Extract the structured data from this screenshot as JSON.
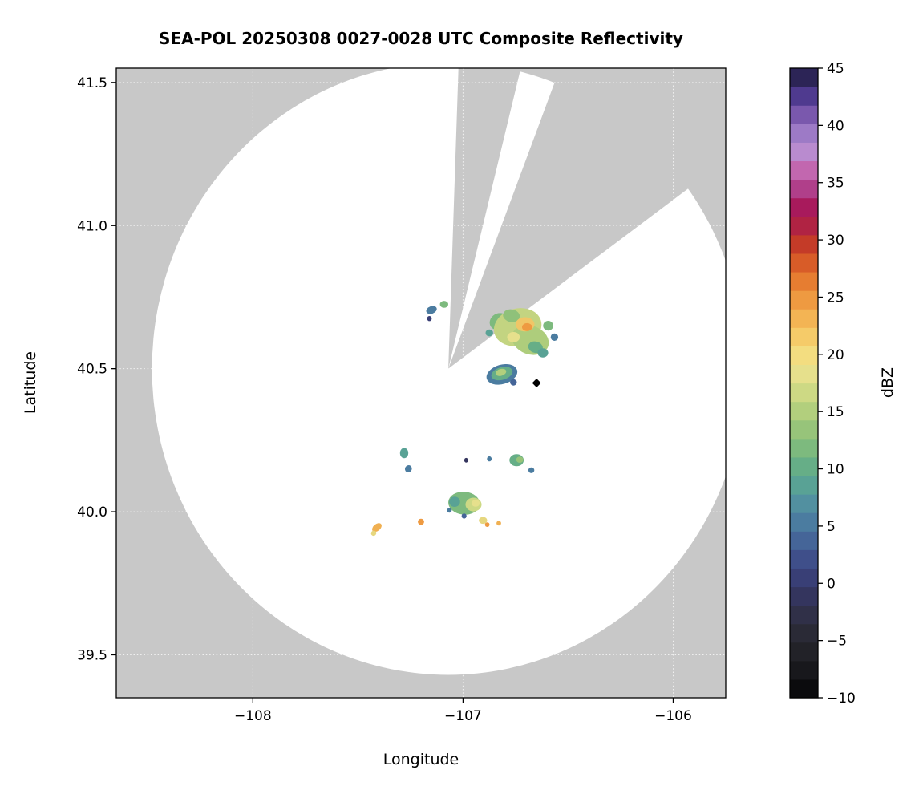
{
  "title": "SEA-POL 20250308 0027-0028 UTC Composite Reflectivity",
  "chart_data": {
    "type": "heatmap",
    "title": "SEA-POL 20250308 0027-0028 UTC Composite Reflectivity",
    "xlabel": "Longitude",
    "ylabel": "Latitude",
    "xlim": [
      -108.65,
      -105.75
    ],
    "ylim": [
      39.35,
      41.55
    ],
    "xticks": [
      -108,
      -107,
      -106
    ],
    "xtick_labels": [
      "−108",
      "−107",
      "−106"
    ],
    "yticks": [
      39.5,
      40.0,
      40.5,
      41.0,
      41.5
    ],
    "ytick_labels": [
      "39.5",
      "40.0",
      "40.5",
      "41.0",
      "41.5"
    ],
    "grid": true,
    "outside_color": "#c8c8c8",
    "radar": {
      "center_lon": -107.07,
      "center_lat": 40.5,
      "radius_lon_deg": 1.41,
      "radius_lat_deg": 1.07,
      "blocked_sectors_az_deg": [
        [
          2,
          14
        ],
        [
          21,
          54
        ]
      ]
    },
    "site_marker": {
      "lon": -106.65,
      "lat": 40.45,
      "shape": "diamond",
      "color": "#000000"
    },
    "colorbar": {
      "label": "dBZ",
      "min": -10,
      "max": 45,
      "tick_values": [
        -10,
        -5,
        0,
        5,
        10,
        15,
        20,
        25,
        30,
        35,
        40,
        45
      ],
      "tick_labels": [
        "−10",
        "−5",
        "0",
        "5",
        "10",
        "15",
        "20",
        "25",
        "30",
        "35",
        "40",
        "45"
      ],
      "colors_bottom_to_top": [
        "#0b0b0d",
        "#18181c",
        "#222228",
        "#2a2a36",
        "#303048",
        "#34355e",
        "#393f76",
        "#3f4f8a",
        "#456598",
        "#4b7ca0",
        "#5290a0",
        "#59a295",
        "#66ae87",
        "#7dba7e",
        "#97c47a",
        "#b2cf7d",
        "#cdd984",
        "#e6e08c",
        "#f3dd80",
        "#f5cb69",
        "#f3b454",
        "#ee9a41",
        "#e67d31",
        "#d85c28",
        "#c43b28",
        "#b02343",
        "#a81a5c",
        "#b03f8a",
        "#c267af",
        "#b98bcf",
        "#9d7ac6",
        "#7a58ad",
        "#4f3a8f",
        "#2c2456"
      ]
    },
    "echo_format": "lon_deg, lat_deg, rx_deg, ry_deg, rotation_deg, fill_color (approx dBZ via colormap)",
    "echoes": [
      [
        -106.83,
        40.665,
        0.045,
        0.028,
        -30,
        "#7dba7e"
      ],
      [
        -106.74,
        40.645,
        0.115,
        0.065,
        -15,
        "#c3d481"
      ],
      [
        -106.68,
        40.6,
        0.09,
        0.05,
        20,
        "#aecd7c"
      ],
      [
        -106.77,
        40.685,
        0.04,
        0.022,
        10,
        "#8fc17a"
      ],
      [
        -106.705,
        40.655,
        0.045,
        0.025,
        0,
        "#f0c667"
      ],
      [
        -106.695,
        40.645,
        0.024,
        0.014,
        0,
        "#ee9a41"
      ],
      [
        -106.76,
        40.61,
        0.03,
        0.018,
        0,
        "#e6e08c"
      ],
      [
        -106.655,
        40.575,
        0.035,
        0.02,
        15,
        "#66ae87"
      ],
      [
        -106.62,
        40.555,
        0.025,
        0.016,
        0,
        "#59a295"
      ],
      [
        -106.595,
        40.65,
        0.024,
        0.017,
        0,
        "#7dba7e"
      ],
      [
        -106.565,
        40.61,
        0.018,
        0.013,
        0,
        "#4b7ca0"
      ],
      [
        -106.875,
        40.625,
        0.018,
        0.012,
        0,
        "#59a295"
      ],
      [
        -107.15,
        40.705,
        0.026,
        0.013,
        -20,
        "#4b7ca0"
      ],
      [
        -107.09,
        40.725,
        0.02,
        0.012,
        0,
        "#7dba7e"
      ],
      [
        -107.16,
        40.675,
        0.011,
        0.009,
        0,
        "#393f76"
      ],
      [
        -106.815,
        40.48,
        0.075,
        0.034,
        -16,
        "#4b7ca0"
      ],
      [
        -106.815,
        40.483,
        0.052,
        0.022,
        -16,
        "#66ae87"
      ],
      [
        -106.82,
        40.487,
        0.026,
        0.012,
        -16,
        "#b2cf7d"
      ],
      [
        -106.76,
        40.452,
        0.016,
        0.011,
        0,
        "#456598"
      ],
      [
        -107.28,
        40.205,
        0.02,
        0.018,
        0,
        "#59a295"
      ],
      [
        -107.26,
        40.15,
        0.016,
        0.013,
        30,
        "#4b7ca0"
      ],
      [
        -106.985,
        40.18,
        0.009,
        0.008,
        0,
        "#34355e"
      ],
      [
        -106.875,
        40.185,
        0.011,
        0.009,
        0,
        "#4b7ca0"
      ],
      [
        -106.745,
        40.18,
        0.034,
        0.021,
        0,
        "#66ae87"
      ],
      [
        -106.73,
        40.182,
        0.017,
        0.011,
        0,
        "#97c47a"
      ],
      [
        -106.675,
        40.145,
        0.014,
        0.01,
        0,
        "#4b7ca0"
      ],
      [
        -106.995,
        40.03,
        0.075,
        0.04,
        5,
        "#7dba7e"
      ],
      [
        -107.04,
        40.035,
        0.026,
        0.018,
        0,
        "#59a295"
      ],
      [
        -106.95,
        40.025,
        0.038,
        0.024,
        0,
        "#cdd984"
      ],
      [
        -106.94,
        40.03,
        0.02,
        0.012,
        0,
        "#e6e08c"
      ],
      [
        -106.995,
        39.985,
        0.012,
        0.009,
        0,
        "#456598"
      ],
      [
        -107.065,
        40.005,
        0.011,
        0.008,
        0,
        "#4b7ca0"
      ],
      [
        -107.41,
        39.945,
        0.026,
        0.012,
        -40,
        "#f0b052"
      ],
      [
        -107.425,
        39.925,
        0.013,
        0.009,
        -40,
        "#e6d77f"
      ],
      [
        -107.2,
        39.965,
        0.015,
        0.011,
        0,
        "#ee9a41"
      ],
      [
        -106.905,
        39.97,
        0.02,
        0.012,
        0,
        "#e6d77f"
      ],
      [
        -106.885,
        39.955,
        0.011,
        0.008,
        0,
        "#ee9a41"
      ],
      [
        -106.83,
        39.96,
        0.011,
        0.008,
        0,
        "#f0b052"
      ]
    ]
  }
}
